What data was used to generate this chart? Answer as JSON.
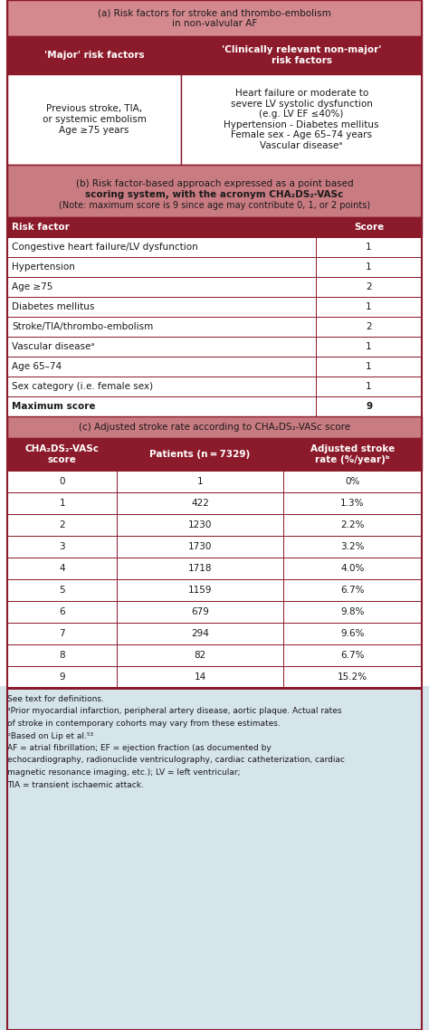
{
  "title_a": "(a) Risk factors for stroke and thrombo-embolism\nin non-valvular AF",
  "header_major": "'Major' risk factors",
  "header_clinically": "'Clinically relevant non-major'\nrisk factors",
  "major_content": "Previous stroke, TIA,\nor systemic embolism\nAge ≥75 years",
  "clinically_content": "Heart failure or moderate to\nsevere LV systolic dysfunction\n(e.g. LV EF ≤40%)\nHypertension - Diabetes mellitus\nFemale sex - Age 65–74 years\nVascular diseaseᵃ",
  "title_b_main": "(b) Risk factor-based approach expressed as a point based\nscoring system, with the acronym CHA₂DS₂-VASc",
  "title_b_sub": "(Note: maximum score is 9 since age may contribute 0, 1, or 2 points)",
  "section_b_header": [
    "Risk factor",
    "Score"
  ],
  "section_b_rows": [
    [
      "Congestive heart failure/LV dysfunction",
      "1"
    ],
    [
      "Hypertension",
      "1"
    ],
    [
      "Age ≥75",
      "2"
    ],
    [
      "Diabetes mellitus",
      "1"
    ],
    [
      "Stroke/TIA/thrombo-embolism",
      "2"
    ],
    [
      "Vascular diseaseᵃ",
      "1"
    ],
    [
      "Age 65–74",
      "1"
    ],
    [
      "Sex category (i.e. female sex)",
      "1"
    ],
    [
      "Maximum score",
      "9"
    ]
  ],
  "title_c": "(c) Adjusted stroke rate according to CHA₂DS₂-VASc score",
  "section_c_header": [
    "CHA₂DS₂-VASc\nscore",
    "Patients (n = 7329)",
    "Adjusted stroke\nrate (%/year)ᵇ"
  ],
  "section_c_rows": [
    [
      "0",
      "1",
      "0%"
    ],
    [
      "1",
      "422",
      "1.3%"
    ],
    [
      "2",
      "1230",
      "2.2%"
    ],
    [
      "3",
      "1730",
      "3.2%"
    ],
    [
      "4",
      "1718",
      "4.0%"
    ],
    [
      "5",
      "1159",
      "6.7%"
    ],
    [
      "6",
      "679",
      "9.8%"
    ],
    [
      "7",
      "294",
      "9.6%"
    ],
    [
      "8",
      "82",
      "6.7%"
    ],
    [
      "9",
      "14",
      "15.2%"
    ]
  ],
  "footnote_lines": [
    "See text for definitions.",
    "ᵃPrior myocardial infarction, peripheral artery disease, aortic plaque. Actual rates",
    "of stroke in contemporary cohorts may vary from these estimates.",
    "ᵇBased on Lip et al.⁵³",
    "AF = atrial fibrillation; EF = ejection fraction (as documented by",
    "echocardiography, radionuclide ventriculography, cardiac catheterization, cardiac",
    "magnetic resonance imaging, etc.); LV = left ventricular;",
    "TIA = transient ischaemic attack."
  ],
  "color_dark_red": "#8B1A2A",
  "color_light_red": "#C97B82",
  "color_pink_bg": "#D4898F",
  "color_section_bg": "#C97B82",
  "color_light_blue": "#D6E4EC",
  "color_white": "#FFFFFF",
  "color_black": "#1A1A1A",
  "color_border": "#8B1A2A",
  "color_border_light": "#A0A0A0"
}
